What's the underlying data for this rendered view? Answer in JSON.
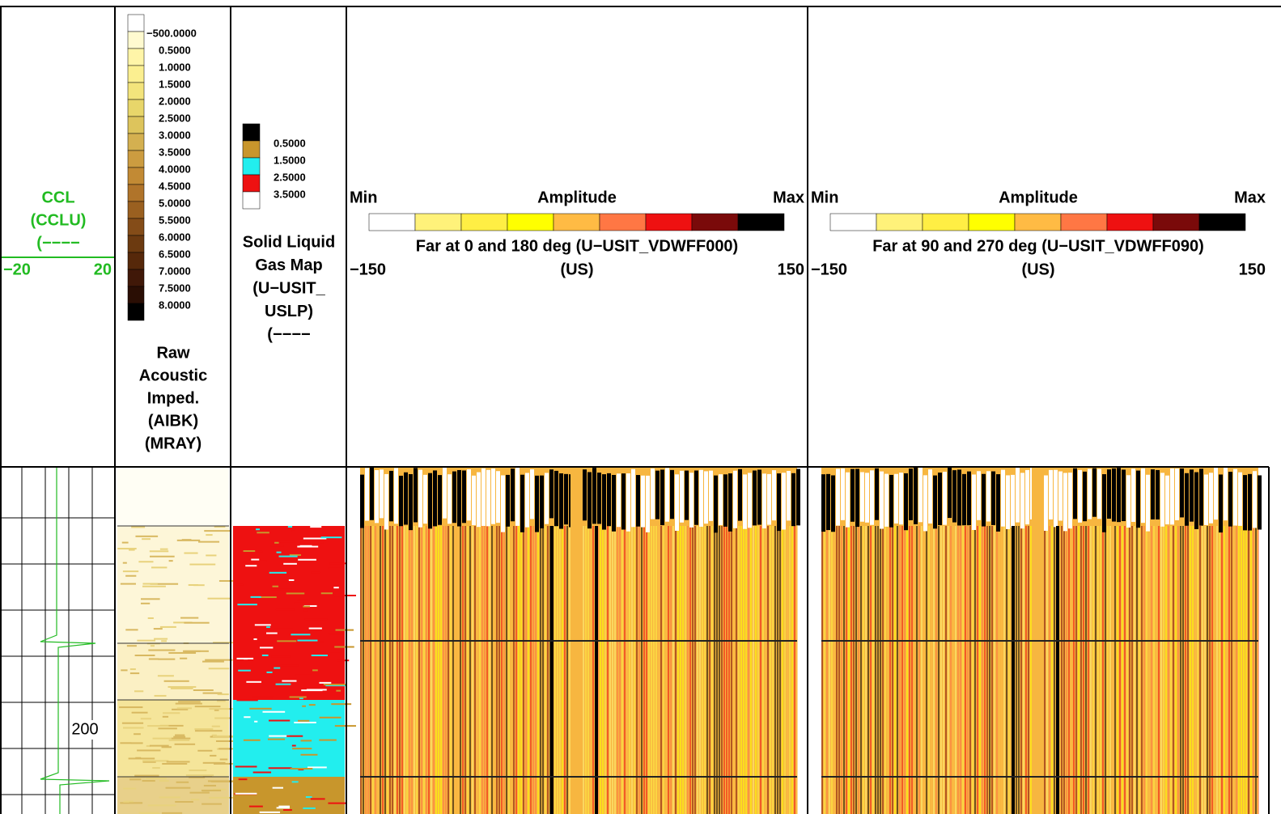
{
  "ccl_track": {
    "name": "CCL",
    "mnemonic": "(CCLU)",
    "line_style": "(−−−−",
    "left": "−20",
    "right": "20",
    "color": "#22bb22",
    "depth_label": "200"
  },
  "impedance_track": {
    "legend_labels": [
      "−500.0000",
      "0.5000",
      "1.0000",
      "1.5000",
      "2.0000",
      "2.5000",
      "3.0000",
      "3.5000",
      "4.0000",
      "4.5000",
      "5.0000",
      "5.5000",
      "6.0000",
      "6.5000",
      "7.0000",
      "7.5000",
      "8.0000"
    ],
    "legend_colors": [
      "#ffffff",
      "#fffad0",
      "#fff5a8",
      "#fbef90",
      "#f3e47c",
      "#e8d66a",
      "#ddc45c",
      "#d4b050",
      "#cc9c40",
      "#c28a34",
      "#b0742a",
      "#9a6020",
      "#844c18",
      "#6c3a10",
      "#56280a",
      "#401808",
      "#2a0e04",
      "#000000"
    ],
    "title_lines": [
      "Raw",
      "Acoustic",
      "Imped.",
      "(AIBK)",
      "(MRAY)"
    ]
  },
  "map_track": {
    "legend_labels": [
      "0.5000",
      "1.5000",
      "2.5000",
      "3.5000"
    ],
    "legend_colors": [
      "#000000",
      "#c8962c",
      "#22eeee",
      "#ee1111",
      "#ffffff"
    ],
    "title_lines": [
      "Solid Liquid",
      "Gas Map",
      "(U−USIT_",
      "USLP)",
      "(−−−−"
    ]
  },
  "amplitude_tracks": [
    {
      "min_label": "Min",
      "title": "Amplitude",
      "max_label": "Max",
      "colors": [
        "#ffffff",
        "#fff27a",
        "#ffee44",
        "#ffff00",
        "#ffbb44",
        "#ff7744",
        "#ee1111",
        "#7a0a0a",
        "#000000"
      ],
      "curve": "Far at 0 and 180 deg (U−USIT_VDWFF000)",
      "unit": "(US)",
      "left": "−150",
      "right": "150"
    },
    {
      "min_label": "Min",
      "title": "Amplitude",
      "max_label": "Max",
      "colors": [
        "#ffffff",
        "#fff27a",
        "#ffee44",
        "#ffff00",
        "#ffbb44",
        "#ff7744",
        "#ee1111",
        "#7a0a0a",
        "#000000"
      ],
      "curve": "Far at 90 and 270 deg (U−USIT_VDWFF090)",
      "unit": "(US)",
      "left": "−150",
      "right": "150"
    }
  ]
}
